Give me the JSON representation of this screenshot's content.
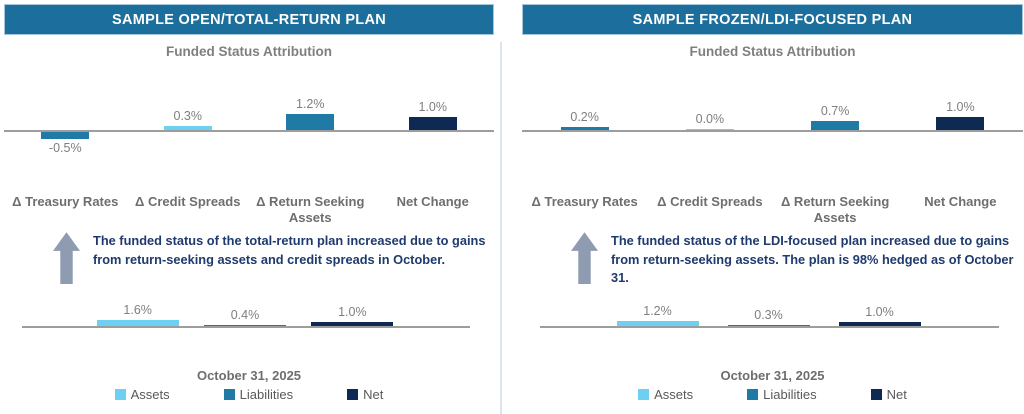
{
  "colors": {
    "assets": "#6DCFF1",
    "liabilities": "#1F7AA6",
    "net": "#0E2A52",
    "header_bg": "#1C6F9C",
    "text_navy": "#1E3A6E",
    "arrow_gray": "#8E9BB0",
    "axis_gray": "#9D9D9D",
    "label_gray": "#7F7F7F"
  },
  "chart_data": [
    {
      "type": "bar",
      "panel": "SAMPLE OPEN/TOTAL-RETURN PLAN",
      "title": "Funded Status Attribution",
      "categories": [
        "Δ Treasury Rates",
        "Δ Credit Spreads",
        "Δ Return Seeking Assets",
        "Net Change"
      ],
      "values": [
        -0.5,
        0.3,
        1.2,
        1.0
      ],
      "labels": [
        "-0.5%",
        "0.3%",
        "1.2%",
        "1.0%"
      ],
      "unit": "%",
      "bar_colors": [
        "liabilities",
        "assets",
        "liabilities",
        "net"
      ],
      "ylim": [
        -0.8,
        1.6
      ],
      "grid": false,
      "legend_position": "none"
    },
    {
      "type": "bar",
      "panel": "SAMPLE OPEN/TOTAL-RETURN PLAN",
      "title": "October 31, 2025",
      "categories": [
        "Assets",
        "Liabilities",
        "Net"
      ],
      "values": [
        1.6,
        0.4,
        1.0
      ],
      "labels": [
        "1.6%",
        "0.4%",
        "1.0%"
      ],
      "unit": "%",
      "bar_colors": [
        "assets",
        "liabilities",
        "net"
      ],
      "ylim": [
        0,
        2
      ],
      "grid": false,
      "legend_position": "bottom"
    },
    {
      "type": "bar",
      "panel": "SAMPLE FROZEN/LDI-FOCUSED PLAN",
      "title": "Funded Status Attribution",
      "categories": [
        "Δ Treasury Rates",
        "Δ Credit Spreads",
        "Δ Return Seeking Assets",
        "Net Change"
      ],
      "values": [
        0.2,
        0.0,
        0.7,
        1.0
      ],
      "labels": [
        "0.2%",
        "0.0%",
        "0.7%",
        "1.0%"
      ],
      "unit": "%",
      "bar_colors": [
        "liabilities",
        "assets",
        "liabilities",
        "net"
      ],
      "ylim": [
        -0.8,
        1.6
      ],
      "grid": false,
      "legend_position": "none"
    },
    {
      "type": "bar",
      "panel": "SAMPLE FROZEN/LDI-FOCUSED PLAN",
      "title": "October 31, 2025",
      "categories": [
        "Assets",
        "Liabilities",
        "Net"
      ],
      "values": [
        1.2,
        0.3,
        1.0
      ],
      "labels": [
        "1.2%",
        "0.3%",
        "1.0%"
      ],
      "unit": "%",
      "bar_colors": [
        "assets",
        "liabilities",
        "net"
      ],
      "ylim": [
        0,
        2
      ],
      "grid": false,
      "legend_position": "bottom"
    }
  ],
  "panels": [
    {
      "header": "SAMPLE OPEN/TOTAL-RETURN PLAN",
      "subtitle": "Funded Status Attribution",
      "commentary": "The funded status of the total-return plan increased due to gains from return-seeking assets and credit spreads in October.",
      "date_label": "October 31, 2025",
      "legend": [
        {
          "label": "Assets",
          "color": "assets"
        },
        {
          "label": "Liabilities",
          "color": "liabilities"
        },
        {
          "label": "Net",
          "color": "net"
        }
      ]
    },
    {
      "header": "SAMPLE FROZEN/LDI-FOCUSED PLAN",
      "subtitle": "Funded Status Attribution",
      "commentary": "The funded status of the LDI-focused plan increased due to gains from return-seeking assets. The plan is 98% hedged as of October 31.",
      "date_label": "October 31, 2025",
      "legend": [
        {
          "label": "Assets",
          "color": "assets"
        },
        {
          "label": "Liabilities",
          "color": "liabilities"
        },
        {
          "label": "Net",
          "color": "net"
        }
      ]
    }
  ]
}
